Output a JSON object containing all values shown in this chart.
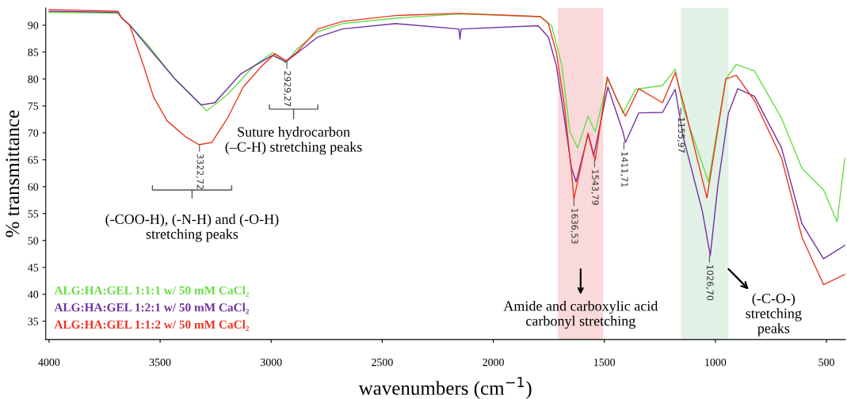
{
  "chart_data": {
    "type": "line",
    "xlabel": "wavenumbers (cm$^{−1}$)",
    "ylabel": "% transmittance",
    "xlim": [
      4015,
      415
    ],
    "ylim": [
      31.6,
      93.2
    ],
    "xticks": [
      4000,
      3500,
      3000,
      2500,
      2000,
      1500,
      1000,
      500
    ],
    "yticks": [
      35,
      40,
      45,
      50,
      55,
      60,
      65,
      70,
      75,
      80,
      85,
      90
    ],
    "grid": false,
    "legend": "bottom left",
    "marker": "none",
    "line_style": "solid",
    "series": [
      {
        "name": "ALG:HA:GEL 1:1:1 w/ 50 mM CaCl₂",
        "color": "#66dd44",
        "x": [
          4000,
          3690,
          3672,
          3636,
          3554,
          3433,
          3290,
          3197,
          3076,
          2994,
          2933,
          2886,
          2790,
          2680,
          2440,
          2155,
          1787,
          1737,
          1691,
          1655,
          1620,
          1573,
          1541,
          1484,
          1416,
          1359,
          1238,
          1181,
          1145,
          1031,
          953,
          906,
          824,
          702,
          610,
          513,
          452,
          417
        ],
        "values": [
          92.4,
          92.2,
          91.3,
          90.0,
          86.3,
          80.0,
          74.1,
          77.1,
          82.5,
          84.9,
          83.0,
          85.5,
          88.8,
          90.3,
          91.3,
          92.1,
          91.6,
          89.9,
          82.5,
          70.2,
          67.2,
          73.1,
          70.2,
          80.0,
          73.7,
          78.1,
          78.8,
          81.8,
          74.6,
          60.9,
          80.0,
          82.7,
          81.5,
          72.7,
          63.4,
          59.4,
          53.5,
          65.3
        ]
      },
      {
        "name": "ALG:HA:GEL 1:2:1 w/ 50 mM CaCl₂",
        "color": "#7030a0",
        "x": [
          4000,
          3690,
          3672,
          3636,
          3554,
          3433,
          3315,
          3254,
          3136,
          2994,
          2933,
          2790,
          2680,
          2440,
          2155,
          2150,
          2145,
          1798,
          1752,
          1716,
          1680,
          1648,
          1627,
          1573,
          1548,
          1484,
          1416,
          1405,
          1345,
          1238,
          1181,
          1145,
          1059,
          1023,
          988,
          941,
          899,
          824,
          702,
          610,
          513,
          417
        ],
        "values": [
          92.6,
          92.4,
          91.3,
          90.0,
          85.9,
          80.0,
          75.2,
          75.6,
          81.0,
          84.4,
          83.2,
          87.8,
          89.3,
          90.3,
          89.3,
          87.4,
          89.3,
          89.9,
          87.8,
          82.5,
          72.7,
          63.5,
          60.9,
          69.7,
          65.7,
          78.5,
          70.2,
          68.2,
          73.7,
          73.8,
          78.1,
          69.3,
          55.5,
          47.2,
          60.5,
          73.7,
          78.2,
          76.8,
          67.2,
          53.1,
          46.6,
          49.1
        ]
      },
      {
        "name": "ALG:HA:GEL 1:1:2 w/ 50 mM CaCl₂",
        "color": "#ee3322",
        "x": [
          4000,
          3690,
          3672,
          3636,
          3575,
          3529,
          3468,
          3386,
          3325,
          3268,
          3197,
          3126,
          3040,
          2983,
          2933,
          2886,
          2790,
          2680,
          2440,
          2155,
          1787,
          1752,
          1716,
          1680,
          1648,
          1637,
          1573,
          1541,
          1487,
          1441,
          1405,
          1345,
          1238,
          1181,
          1138,
          1038,
          953,
          906,
          824,
          702,
          610,
          513,
          417
        ],
        "values": [
          92.9,
          92.6,
          91.3,
          89.9,
          82.5,
          76.6,
          72.2,
          69.3,
          67.8,
          68.2,
          72.7,
          78.5,
          82.5,
          84.7,
          83.4,
          84.9,
          89.3,
          90.7,
          91.8,
          92.2,
          91.6,
          90.3,
          84.9,
          75.2,
          62.8,
          57.7,
          70.0,
          64.9,
          80.4,
          76.0,
          73.1,
          78.2,
          75.6,
          81.2,
          74.6,
          57.9,
          80.0,
          80.7,
          76.0,
          65.3,
          50.6,
          41.8,
          43.7
        ]
      }
    ],
    "bands": [
      {
        "axis": "x",
        "from": 1709,
        "to": 1505,
        "color": "#f9d9d9"
      },
      {
        "axis": "x",
        "from": 1155,
        "to": 941,
        "color": "#e1f1e6"
      }
    ],
    "annotations": [
      "(-COO-H), (-N-H) and (-O-H)\nstretching peaks",
      "Suture hydrocarbon\n(–C-H) stretching peaks",
      "Amide and carboxylic acid\ncarbonyl stretching",
      {
        "text": "(-C-O-)\nstretching\npeaks",
        "x": 941,
        "y": 44.7
      },
      {
        "text": "3322,72",
        "x": 3322.72,
        "y": 67.8
      },
      {
        "text": "2929,27",
        "x": 2929.27,
        "y": 83.2
      },
      {
        "text": "1636,53",
        "x": 1636.53,
        "y": 57.7
      },
      {
        "text": "1543,79",
        "x": 1543.79,
        "y": 64.9
      },
      {
        "text": "1411,71",
        "x": 1411.71,
        "y": 68.2
      },
      {
        "text": "1155,97",
        "x": 1155.97,
        "y": 74.6
      },
      {
        "text": "1026,70",
        "x": 1026.7,
        "y": 47.2
      }
    ]
  }
}
